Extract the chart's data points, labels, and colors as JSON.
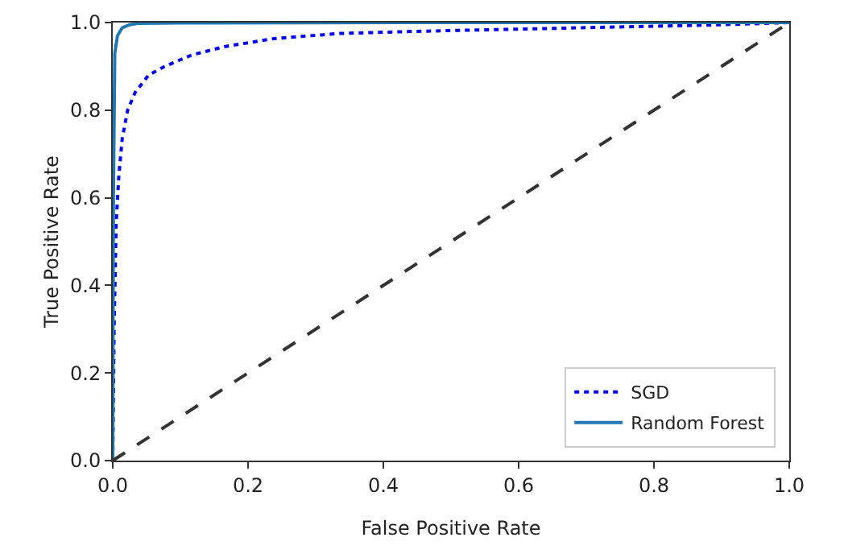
{
  "chart_data": {
    "type": "line",
    "xlabel": "False Positive Rate",
    "ylabel": "True Positive Rate",
    "xlim": [
      0,
      1
    ],
    "ylim": [
      0,
      1
    ],
    "xticks": [
      {
        "value": 0,
        "label": "0.0"
      },
      0.2,
      0.4,
      0.6,
      0.8,
      {
        "value": 1,
        "label": "1.0"
      }
    ],
    "yticks": [
      {
        "value": 0,
        "label": "0.0"
      },
      0.2,
      0.4,
      0.6,
      0.8,
      {
        "value": 1,
        "label": "1.0"
      }
    ],
    "grid": false,
    "legend": "bottom right",
    "series": [
      {
        "name": "SGD",
        "color": "#0000ff",
        "line_style": "dotted",
        "x": [
          0,
          0.002,
          0.005,
          0.009,
          0.014,
          0.022,
          0.033,
          0.053,
          0.077,
          0.117,
          0.165,
          0.237,
          0.333,
          0.45,
          0.6,
          0.75,
          0.9,
          1
        ],
        "values": [
          0,
          0.3,
          0.54,
          0.65,
          0.735,
          0.8,
          0.84,
          0.88,
          0.9,
          0.926,
          0.945,
          0.963,
          0.975,
          0.98,
          0.985,
          0.99,
          0.995,
          1
        ]
      },
      {
        "name": "Random Forest",
        "color": "#1f77b4",
        "line_style": "solid",
        "x": [
          0,
          0.001,
          0.003,
          0.007,
          0.014,
          0.025,
          0.037,
          0.1,
          0.5,
          1
        ],
        "values": [
          0,
          0.6,
          0.93,
          0.97,
          0.988,
          0.995,
          0.998,
          0.999,
          1,
          1
        ]
      },
      {
        "color": "#333333",
        "line_style": "dashed",
        "x": [
          0,
          1
        ],
        "values": [
          0,
          1
        ]
      }
    ]
  }
}
